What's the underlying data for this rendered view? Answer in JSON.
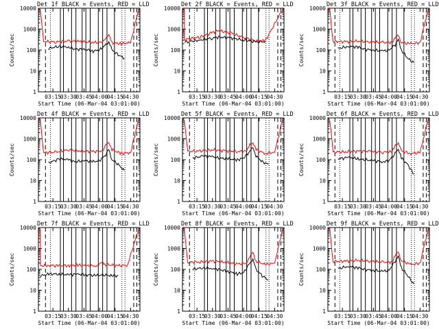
{
  "colors": {
    "events": "#000000",
    "lld": "#ff0000",
    "axis": "#000000",
    "background": "#ffffff"
  },
  "chart_data": {
    "type": "line",
    "layout": "3x3 grid",
    "y_scale": "log",
    "ylim": [
      1,
      10000
    ],
    "y_ticks": [
      "1",
      "10",
      "100",
      "1000",
      "10000"
    ],
    "ylabel": "Counts/sec",
    "xlabel": "Start Time (06-Mar-04 03:01:00)",
    "x_ticks": [
      "03:15",
      "03:30",
      "03:45",
      "04:00",
      "04:15",
      "04:30"
    ],
    "time_range": [
      "03:01",
      "04:39"
    ],
    "series_labels": {
      "events": "Events",
      "lld": "LLD"
    },
    "panels": [
      {
        "title": "Det 1f BLACK = Events, RED = LLD",
        "events": [
          [
            3.18,
            120
          ],
          [
            3.35,
            150
          ],
          [
            3.5,
            140
          ],
          [
            3.6,
            110
          ],
          [
            3.75,
            110
          ],
          [
            3.9,
            90
          ],
          [
            4.0,
            100
          ],
          [
            4.1,
            180
          ],
          [
            4.15,
            250
          ],
          [
            4.2,
            100
          ],
          [
            4.3,
            60
          ],
          [
            4.4,
            40
          ]
        ],
        "lld": [
          [
            3.1,
            260
          ],
          [
            3.3,
            250
          ],
          [
            3.5,
            270
          ],
          [
            3.7,
            260
          ],
          [
            3.9,
            230
          ],
          [
            4.05,
            240
          ],
          [
            4.1,
            400
          ],
          [
            4.15,
            500
          ],
          [
            4.2,
            230
          ],
          [
            4.35,
            200
          ],
          [
            4.5,
            230
          ]
        ]
      },
      {
        "title": "Det 2f BLACK = Events, RED = LLD",
        "events": [
          [
            3.05,
            240
          ],
          [
            3.3,
            300
          ],
          [
            3.5,
            380
          ],
          [
            3.6,
            420
          ],
          [
            3.8,
            380
          ],
          [
            4.0,
            300
          ],
          [
            4.2,
            250
          ],
          [
            4.35,
            250
          ]
        ],
        "lld": [
          [
            3.05,
            320
          ],
          [
            3.3,
            420
          ],
          [
            3.5,
            700
          ],
          [
            3.6,
            850
          ],
          [
            3.8,
            650
          ],
          [
            4.0,
            400
          ],
          [
            4.2,
            280
          ],
          [
            4.35,
            280
          ]
        ]
      },
      {
        "title": "Det 3f BLACK = Events, RED = LLD",
        "events": [
          [
            3.18,
            120
          ],
          [
            3.35,
            150
          ],
          [
            3.5,
            140
          ],
          [
            3.6,
            110
          ],
          [
            3.75,
            100
          ],
          [
            3.9,
            90
          ],
          [
            4.0,
            100
          ],
          [
            4.1,
            180
          ],
          [
            4.15,
            300
          ],
          [
            4.2,
            100
          ],
          [
            4.3,
            40
          ],
          [
            4.4,
            25
          ]
        ],
        "lld": [
          [
            3.1,
            260
          ],
          [
            3.3,
            250
          ],
          [
            3.5,
            270
          ],
          [
            3.7,
            250
          ],
          [
            3.9,
            230
          ],
          [
            4.05,
            240
          ],
          [
            4.1,
            400
          ],
          [
            4.15,
            500
          ],
          [
            4.2,
            230
          ],
          [
            4.35,
            200
          ],
          [
            4.5,
            230
          ]
        ]
      },
      {
        "title": "Det 4f BLACK = Events, RED = LLD",
        "events": [
          [
            3.18,
            70
          ],
          [
            3.35,
            110
          ],
          [
            3.5,
            100
          ],
          [
            3.6,
            80
          ],
          [
            3.75,
            90
          ],
          [
            3.9,
            80
          ],
          [
            4.0,
            90
          ],
          [
            4.1,
            170
          ],
          [
            4.15,
            300
          ],
          [
            4.2,
            100
          ],
          [
            4.3,
            60
          ],
          [
            4.4,
            30
          ]
        ],
        "lld": [
          [
            3.1,
            220
          ],
          [
            3.3,
            230
          ],
          [
            3.5,
            300
          ],
          [
            3.7,
            260
          ],
          [
            3.9,
            250
          ],
          [
            4.05,
            260
          ],
          [
            4.1,
            500
          ],
          [
            4.15,
            700
          ],
          [
            4.2,
            300
          ],
          [
            4.35,
            200
          ],
          [
            4.5,
            220
          ]
        ]
      },
      {
        "title": "Det 5f BLACK = Events, RED = LLD",
        "events": [
          [
            3.18,
            120
          ],
          [
            3.35,
            150
          ],
          [
            3.5,
            140
          ],
          [
            3.6,
            120
          ],
          [
            3.75,
            110
          ],
          [
            3.9,
            100
          ],
          [
            4.0,
            120
          ],
          [
            4.1,
            250
          ],
          [
            4.15,
            400
          ],
          [
            4.2,
            150
          ],
          [
            4.3,
            80
          ],
          [
            4.4,
            60
          ]
        ],
        "lld": [
          [
            3.1,
            250
          ],
          [
            3.3,
            260
          ],
          [
            3.5,
            300
          ],
          [
            3.7,
            270
          ],
          [
            3.9,
            250
          ],
          [
            4.05,
            260
          ],
          [
            4.1,
            500
          ],
          [
            4.15,
            700
          ],
          [
            4.2,
            300
          ],
          [
            4.35,
            200
          ],
          [
            4.5,
            230
          ]
        ]
      },
      {
        "title": "Det 6f BLACK = Events, RED = LLD",
        "events": [
          [
            3.18,
            110
          ],
          [
            3.35,
            130
          ],
          [
            3.5,
            110
          ],
          [
            3.6,
            100
          ],
          [
            3.75,
            90
          ],
          [
            3.9,
            80
          ],
          [
            4.0,
            90
          ],
          [
            4.1,
            200
          ],
          [
            4.15,
            350
          ],
          [
            4.2,
            120
          ],
          [
            4.3,
            60
          ],
          [
            4.4,
            20
          ]
        ],
        "lld": [
          [
            3.1,
            230
          ],
          [
            3.3,
            240
          ],
          [
            3.5,
            260
          ],
          [
            3.7,
            250
          ],
          [
            3.9,
            230
          ],
          [
            4.05,
            240
          ],
          [
            4.1,
            480
          ],
          [
            4.15,
            650
          ],
          [
            4.2,
            260
          ],
          [
            4.35,
            200
          ],
          [
            4.5,
            220
          ]
        ]
      },
      {
        "title": "Det 7f BLACK = Events, RED = LLD",
        "events": [
          [
            3.05,
            50
          ],
          [
            3.2,
            60
          ],
          [
            3.35,
            60
          ],
          [
            3.5,
            55
          ],
          [
            3.65,
            60
          ],
          [
            3.8,
            55
          ],
          [
            3.95,
            50
          ],
          [
            4.05,
            55
          ],
          [
            4.2,
            50
          ],
          [
            4.3,
            50
          ]
        ],
        "lld": [
          [
            3.05,
            150
          ],
          [
            3.2,
            155
          ],
          [
            3.35,
            150
          ],
          [
            3.5,
            155
          ],
          [
            3.65,
            160
          ],
          [
            3.8,
            150
          ],
          [
            3.95,
            150
          ],
          [
            4.0,
            180
          ],
          [
            4.05,
            220
          ],
          [
            4.1,
            170
          ],
          [
            4.3,
            150
          ],
          [
            4.45,
            160
          ]
        ]
      },
      {
        "title": "Det 8f BLACK = Events, RED = LLD",
        "events": [
          [
            3.18,
            100
          ],
          [
            3.35,
            120
          ],
          [
            3.5,
            110
          ],
          [
            3.6,
            100
          ],
          [
            3.75,
            80
          ],
          [
            3.9,
            60
          ],
          [
            4.0,
            70
          ],
          [
            4.1,
            200
          ],
          [
            4.15,
            300
          ],
          [
            4.2,
            100
          ],
          [
            4.3,
            50
          ],
          [
            4.4,
            30
          ]
        ],
        "lld": [
          [
            3.1,
            220
          ],
          [
            3.3,
            230
          ],
          [
            3.5,
            250
          ],
          [
            3.7,
            220
          ],
          [
            3.9,
            180
          ],
          [
            4.05,
            200
          ],
          [
            4.1,
            450
          ],
          [
            4.15,
            600
          ],
          [
            4.2,
            250
          ],
          [
            4.35,
            170
          ],
          [
            4.5,
            200
          ]
        ]
      },
      {
        "title": "Det 9f BLACK = Events, RED = LLD",
        "events": [
          [
            3.18,
            110
          ],
          [
            3.35,
            140
          ],
          [
            3.5,
            120
          ],
          [
            3.6,
            100
          ],
          [
            3.75,
            90
          ],
          [
            3.9,
            80
          ],
          [
            4.0,
            90
          ],
          [
            4.1,
            250
          ],
          [
            4.15,
            400
          ],
          [
            4.2,
            120
          ],
          [
            4.3,
            50
          ],
          [
            4.4,
            20
          ]
        ],
        "lld": [
          [
            3.1,
            240
          ],
          [
            3.3,
            250
          ],
          [
            3.5,
            270
          ],
          [
            3.7,
            250
          ],
          [
            3.9,
            220
          ],
          [
            4.05,
            230
          ],
          [
            4.1,
            500
          ],
          [
            4.15,
            650
          ],
          [
            4.2,
            260
          ],
          [
            4.35,
            170
          ],
          [
            4.5,
            200
          ]
        ]
      }
    ]
  }
}
